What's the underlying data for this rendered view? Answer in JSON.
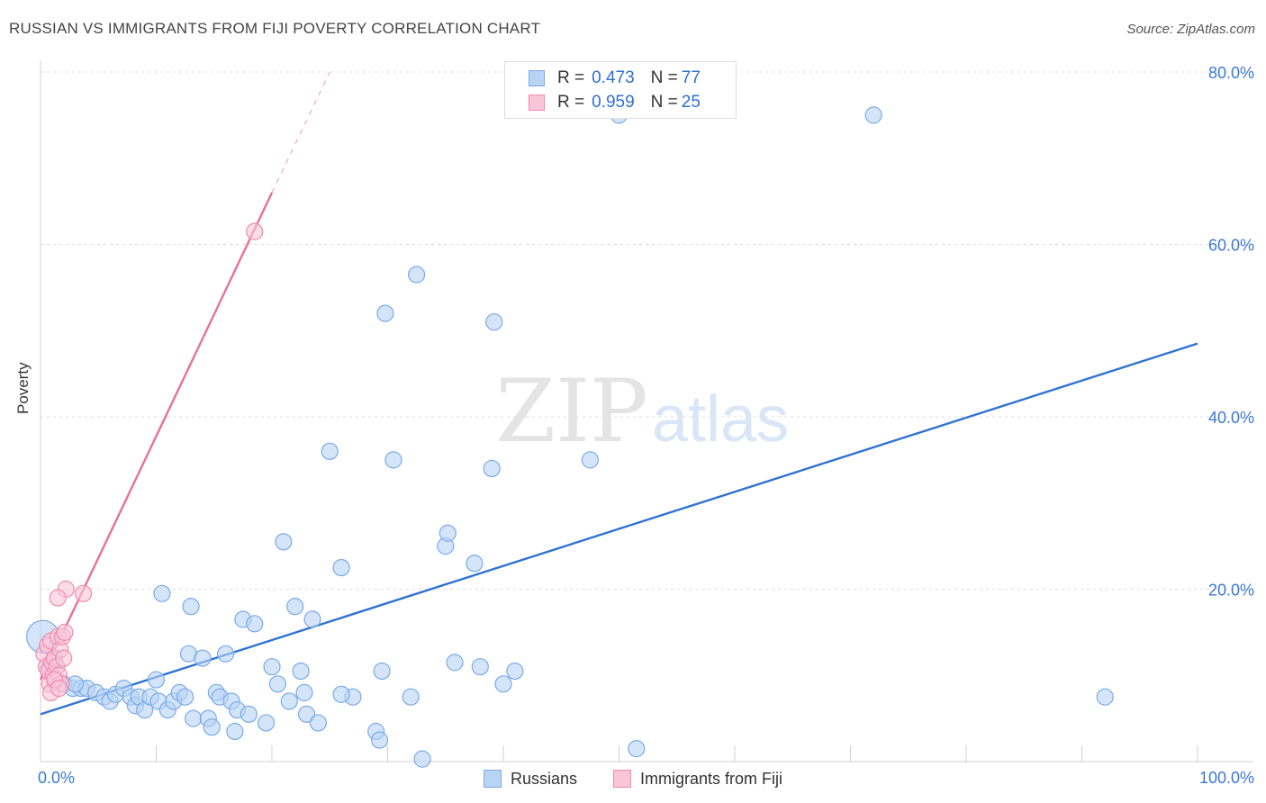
{
  "header": {
    "title": "RUSSIAN VS IMMIGRANTS FROM FIJI POVERTY CORRELATION CHART",
    "source": "Source: ZipAtlas.com"
  },
  "watermark": {
    "zip": "ZIP",
    "atlas": "atlas"
  },
  "legend_top": {
    "rows": [
      {
        "r_label": "R = ",
        "r_value": "0.473",
        "n_label": "N = ",
        "n_value": "77",
        "color": "#7aaae8",
        "fill": "#b9d3f5"
      },
      {
        "r_label": "R = ",
        "r_value": "0.959",
        "n_label": "N = ",
        "n_value": "25",
        "color": "#f08ab0",
        "fill": "#f9c6d8"
      }
    ]
  },
  "legend_bottom": [
    {
      "label": "Russians",
      "color": "#7aaae8",
      "fill": "#b9d3f5"
    },
    {
      "label": "Immigrants from Fiji",
      "color": "#f08ab0",
      "fill": "#f9c6d8"
    }
  ],
  "chart_data": {
    "type": "scatter",
    "title": "RUSSIAN VS IMMIGRANTS FROM FIJI POVERTY CORRELATION CHART",
    "xlabel": "",
    "ylabel": "Poverty",
    "xlim": [
      0,
      100
    ],
    "ylim": [
      0,
      80
    ],
    "x_tick_labels": [
      "0.0%",
      "100.0%"
    ],
    "y_ticks": [
      20,
      40,
      60,
      80
    ],
    "y_tick_labels": [
      "20.0%",
      "40.0%",
      "60.0%",
      "80.0%"
    ],
    "grid": true,
    "series": [
      {
        "name": "Russians",
        "color": "#2f73d2",
        "point_fill": "#b9d3f5",
        "point_stroke": "#7aaae8",
        "trend": {
          "x": [
            0,
            100
          ],
          "y": [
            5.5,
            48.5
          ],
          "style": "solid"
        },
        "points": [
          [
            0.2,
            14.5
          ],
          [
            1.2,
            12
          ],
          [
            0.8,
            11
          ],
          [
            2.0,
            9
          ],
          [
            2.8,
            8.5
          ],
          [
            3.5,
            8.5
          ],
          [
            4.0,
            8.5
          ],
          [
            4.8,
            8
          ],
          [
            5.5,
            7.5
          ],
          [
            6.0,
            7
          ],
          [
            6.5,
            7.8
          ],
          [
            7.2,
            8.5
          ],
          [
            7.8,
            7.5
          ],
          [
            8.2,
            6.5
          ],
          [
            8.5,
            7.5
          ],
          [
            9.0,
            6
          ],
          [
            9.5,
            7.5
          ],
          [
            10.2,
            7
          ],
          [
            10.5,
            19.5
          ],
          [
            11.0,
            6
          ],
          [
            11.5,
            7
          ],
          [
            12.0,
            8
          ],
          [
            12.5,
            7.5
          ],
          [
            12.8,
            12.5
          ],
          [
            13.0,
            18
          ],
          [
            13.2,
            5
          ],
          [
            14.0,
            12
          ],
          [
            14.5,
            5
          ],
          [
            14.8,
            4
          ],
          [
            15.2,
            8
          ],
          [
            15.5,
            7.5
          ],
          [
            16.0,
            12.5
          ],
          [
            16.5,
            7
          ],
          [
            16.8,
            3.5
          ],
          [
            17.0,
            6
          ],
          [
            17.5,
            16.5
          ],
          [
            18.0,
            5.5
          ],
          [
            18.5,
            16
          ],
          [
            19.5,
            4.5
          ],
          [
            20.0,
            11
          ],
          [
            20.5,
            9
          ],
          [
            21.0,
            25.5
          ],
          [
            21.5,
            7
          ],
          [
            22.0,
            18
          ],
          [
            22.5,
            10.5
          ],
          [
            22.8,
            8
          ],
          [
            23.0,
            5.5
          ],
          [
            23.5,
            16.5
          ],
          [
            24.0,
            4.5
          ],
          [
            25.0,
            36
          ],
          [
            26.0,
            22.5
          ],
          [
            27.0,
            7.5
          ],
          [
            29.0,
            3.5
          ],
          [
            29.3,
            2.5
          ],
          [
            29.5,
            10.5
          ],
          [
            29.8,
            52
          ],
          [
            30.5,
            35
          ],
          [
            32.0,
            7.5
          ],
          [
            32.5,
            56.5
          ],
          [
            33.0,
            0.3
          ],
          [
            35.0,
            25
          ],
          [
            35.2,
            26.5
          ],
          [
            35.8,
            11.5
          ],
          [
            37.5,
            23
          ],
          [
            38.0,
            11
          ],
          [
            39.0,
            34
          ],
          [
            39.2,
            51
          ],
          [
            40.0,
            9
          ],
          [
            41.0,
            10.5
          ],
          [
            47.5,
            35
          ],
          [
            50.0,
            75
          ],
          [
            51.5,
            1.5
          ],
          [
            72.0,
            75
          ],
          [
            92.0,
            7.5
          ],
          [
            26.0,
            7.8
          ],
          [
            10.0,
            9.5
          ],
          [
            3.0,
            9.0
          ]
        ]
      },
      {
        "name": "Immigrants from Fiji",
        "color": "#e8709a",
        "point_fill": "#f9c6d8",
        "point_stroke": "#f08ab0",
        "trend": {
          "x": [
            0,
            20
          ],
          "y": [
            9.5,
            66
          ],
          "style": "solid",
          "extension": {
            "x": [
              20,
              25
            ],
            "y": [
              66,
              80
            ],
            "style": "dashed"
          }
        },
        "points": [
          [
            0.3,
            12.5
          ],
          [
            0.5,
            11
          ],
          [
            0.6,
            13.5
          ],
          [
            0.7,
            10.5
          ],
          [
            0.8,
            9
          ],
          [
            0.9,
            14
          ],
          [
            1.0,
            11.5
          ],
          [
            1.1,
            10
          ],
          [
            1.2,
            12
          ],
          [
            1.3,
            9.5
          ],
          [
            1.4,
            11
          ],
          [
            1.5,
            14.5
          ],
          [
            1.6,
            10
          ],
          [
            1.7,
            13
          ],
          [
            1.8,
            9
          ],
          [
            1.9,
            14.5
          ],
          [
            2.0,
            12
          ],
          [
            2.1,
            15
          ],
          [
            2.2,
            20
          ],
          [
            1.5,
            19
          ],
          [
            3.7,
            19.5
          ],
          [
            0.9,
            8
          ],
          [
            1.2,
            9.5
          ],
          [
            1.6,
            8.5
          ],
          [
            18.5,
            61.5
          ]
        ]
      }
    ]
  }
}
